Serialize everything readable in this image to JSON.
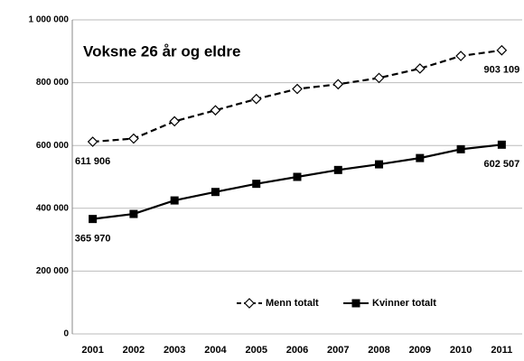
{
  "chart_data": {
    "type": "line",
    "title": "Voksne 26 år og eldre",
    "categories": [
      "2001",
      "2002",
      "2003",
      "2004",
      "2005",
      "2006",
      "2007",
      "2008",
      "2009",
      "2010",
      "2011"
    ],
    "series": [
      {
        "name": "Menn totalt",
        "color": "#000000",
        "dashed": true,
        "marker": "diamond",
        "values": [
          611906,
          622000,
          677000,
          712000,
          748000,
          780000,
          795000,
          815000,
          845000,
          885000,
          903109
        ],
        "value_labels": [
          "611 906",
          null,
          null,
          null,
          null,
          null,
          null,
          null,
          null,
          null,
          "903 109"
        ]
      },
      {
        "name": "Kvinner totalt",
        "color": "#000000",
        "dashed": false,
        "marker": "square",
        "values": [
          365970,
          382000,
          425000,
          452000,
          478000,
          500000,
          522000,
          540000,
          560000,
          588000,
          602507
        ],
        "value_labels": [
          "365 970",
          null,
          null,
          null,
          null,
          null,
          null,
          null,
          null,
          null,
          "602 507"
        ]
      }
    ],
    "ylim": [
      0,
      1000000
    ],
    "yticks": [
      {
        "value": 0,
        "label": "0"
      },
      {
        "value": 200000,
        "label": "200 000"
      },
      {
        "value": 400000,
        "label": "400 000"
      },
      {
        "value": 600000,
        "label": "600 000"
      },
      {
        "value": 800000,
        "label": "800 000"
      },
      {
        "value": 1000000,
        "label": "1 000 000"
      }
    ],
    "grid": true,
    "legend": "bottom"
  }
}
